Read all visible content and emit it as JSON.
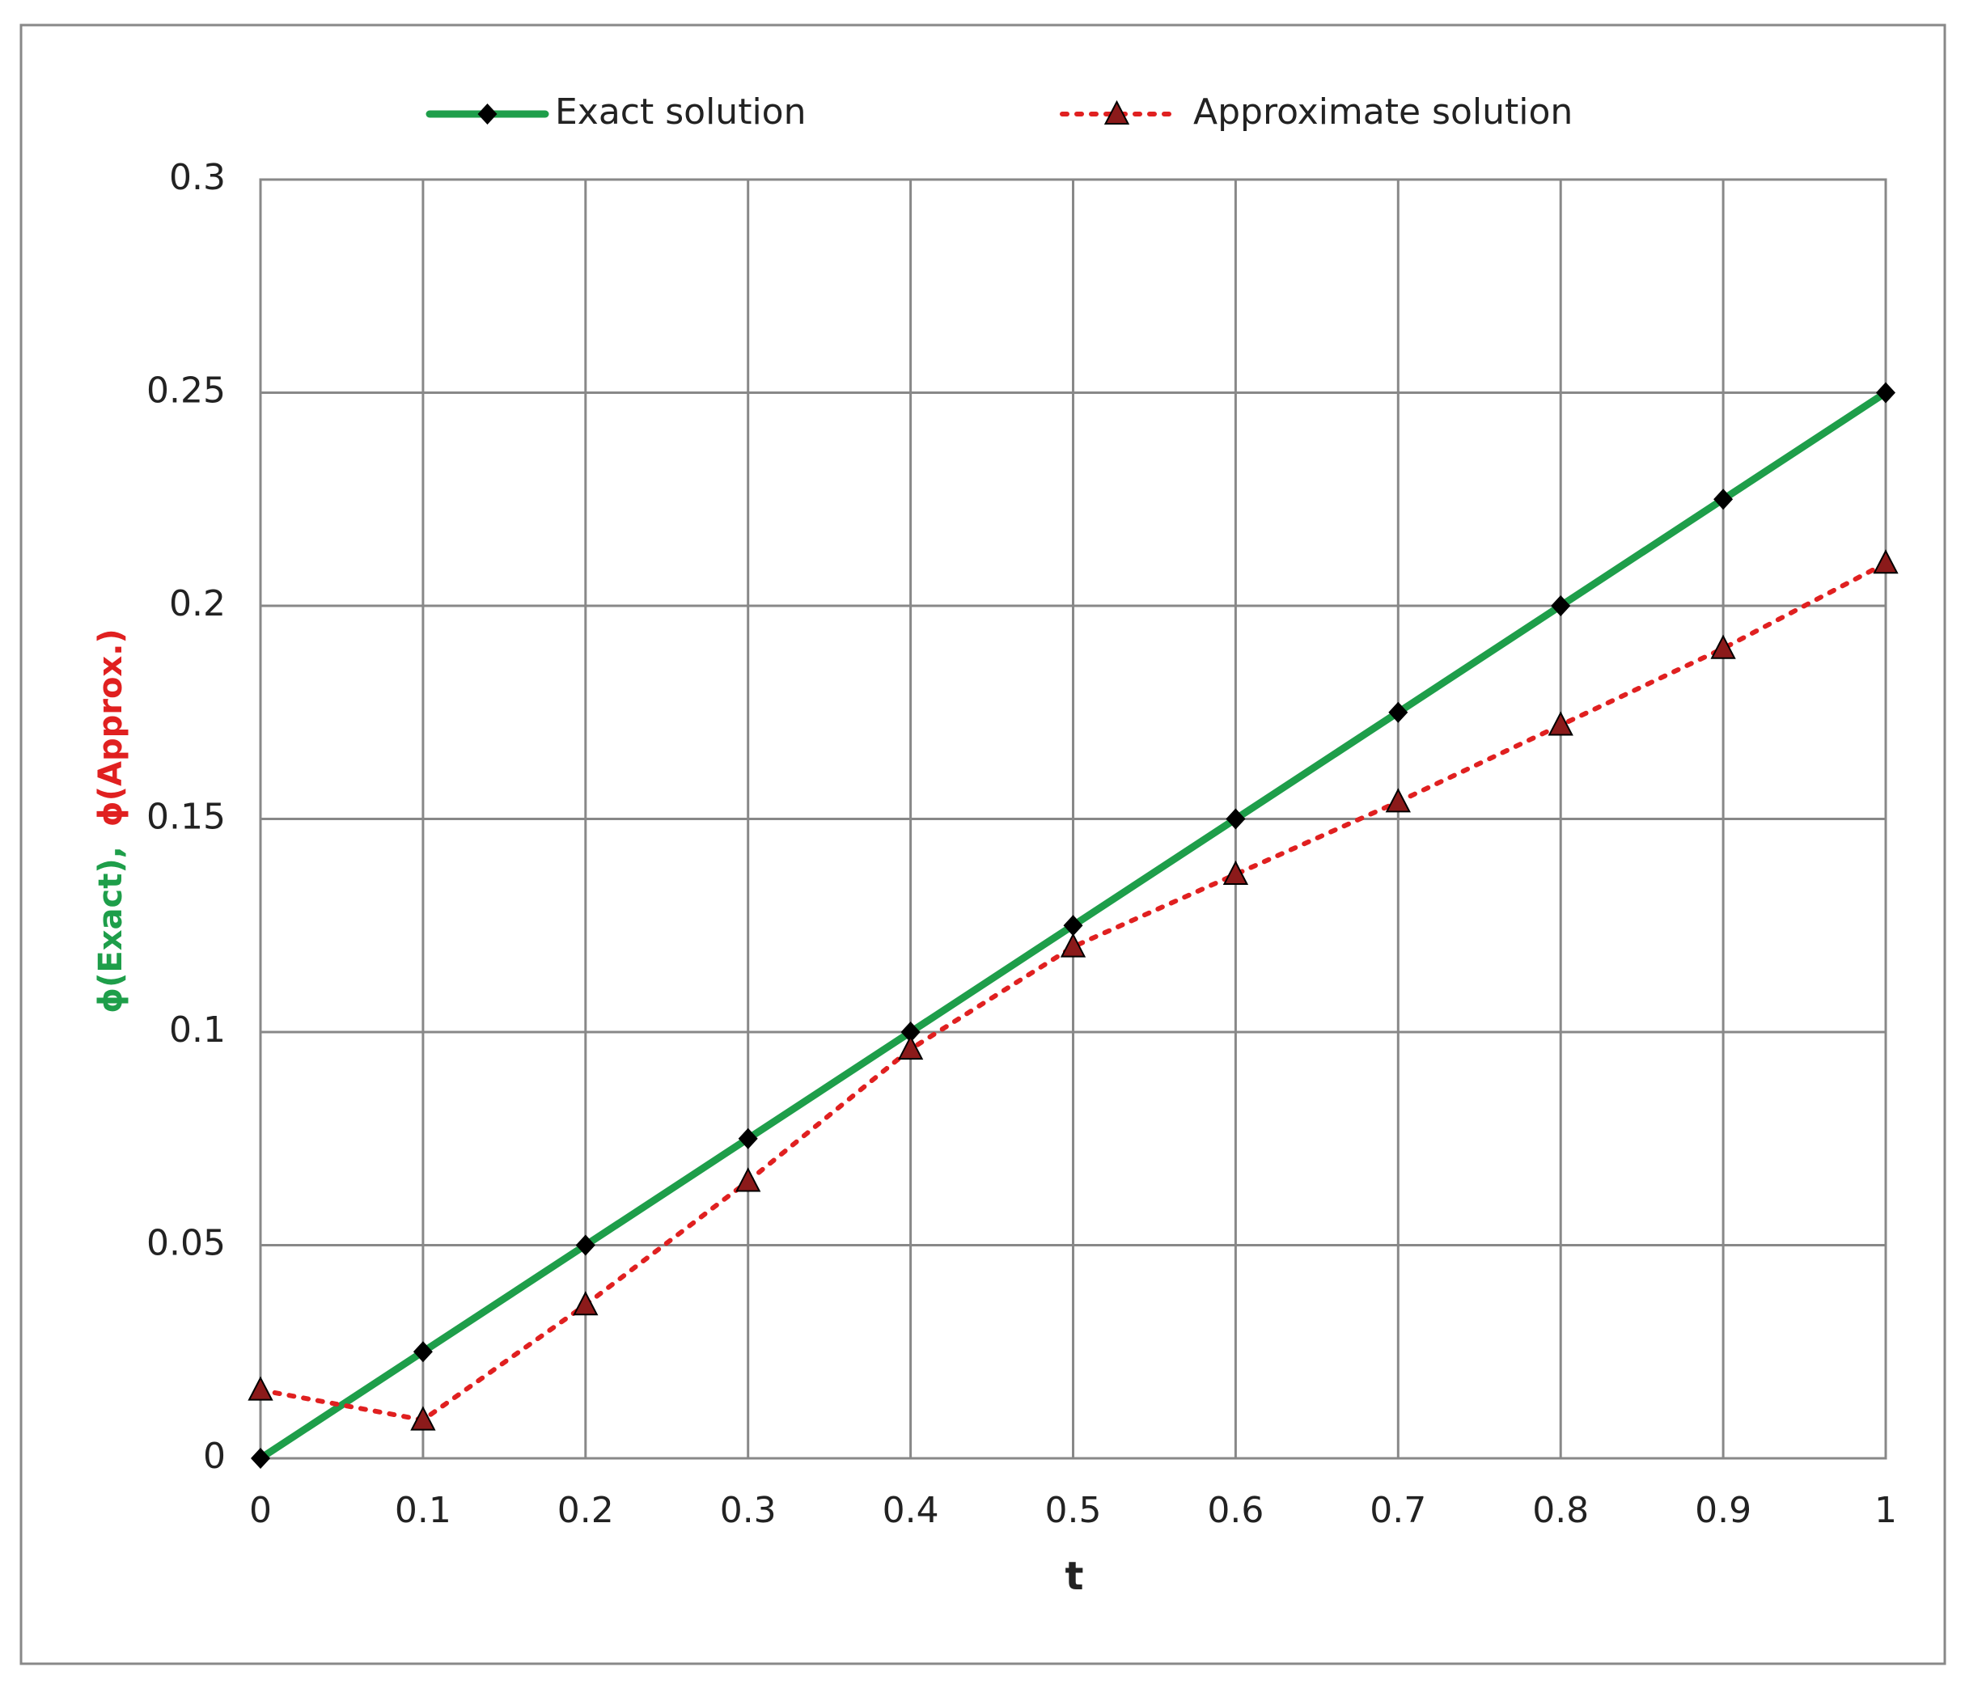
{
  "chart_data": {
    "type": "line",
    "x": [
      0,
      0.1,
      0.2,
      0.3,
      0.4,
      0.5,
      0.6,
      0.7,
      0.8,
      0.9,
      1
    ],
    "series": [
      {
        "name": "Exact solution",
        "color": "#1e9e4a",
        "marker": "diamond",
        "line": "solid",
        "values": [
          0,
          0.025,
          0.05,
          0.075,
          0.1,
          0.125,
          0.15,
          0.175,
          0.2,
          0.225,
          0.25
        ]
      },
      {
        "name": "Approximate solution",
        "color": "#e02020",
        "marker": "triangle",
        "line": "dotted",
        "values": [
          0.016,
          0.009,
          0.036,
          0.065,
          0.096,
          0.12,
          0.137,
          0.154,
          0.172,
          0.19,
          0.21
        ]
      }
    ],
    "xlim": [
      0,
      1
    ],
    "xticks": [
      0,
      0.1,
      0.2,
      0.3,
      0.4,
      0.5,
      0.6,
      0.7,
      0.8,
      0.9,
      1
    ],
    "ylim": [
      0,
      0.3
    ],
    "yticks": [
      0,
      0.05,
      0.1,
      0.15,
      0.2,
      0.25,
      0.3
    ],
    "xlabel": "t",
    "ylabel": [
      "ϕ(Exact),",
      "ϕ(Approx.)"
    ],
    "grid": true,
    "legend": "top"
  }
}
